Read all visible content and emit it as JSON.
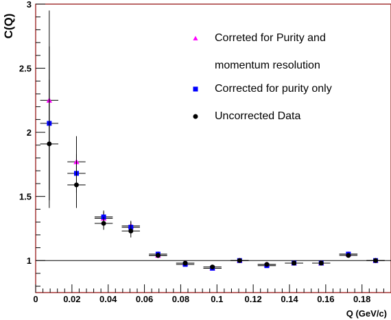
{
  "chart_data": {
    "type": "scatter",
    "xlabel": "Q (GeV/c)",
    "ylabel": "C(Q)",
    "xlim": [
      0,
      0.196
    ],
    "ylim": [
      0.75,
      3.0
    ],
    "x_ticks": [
      "0",
      "0.02",
      "0.04",
      "0.06",
      "0.08",
      "0.1",
      "0.12",
      "0.14",
      "0.16",
      "0.18"
    ],
    "x_tick_values": [
      0,
      0.02,
      0.04,
      0.06,
      0.08,
      0.1,
      0.12,
      0.14,
      0.16,
      0.18
    ],
    "y_ticks": [
      "1",
      "1.5",
      "2",
      "2.5",
      "3"
    ],
    "y_tick_values": [
      1,
      1.5,
      2,
      2.5,
      3
    ],
    "reference_line": 1.0,
    "legend_position": "top-right",
    "x_bin_halfwidth": 0.005,
    "series": [
      {
        "name": "Corrected for purity only",
        "marker": "square",
        "color": "#0000ff",
        "x": [
          0.0075,
          0.0225,
          0.0375,
          0.0525,
          0.0675,
          0.0825,
          0.0975,
          0.1125,
          0.1275,
          0.1425,
          0.1575,
          0.1725,
          0.1875
        ],
        "y": [
          2.07,
          1.68,
          1.34,
          1.26,
          1.05,
          0.97,
          0.94,
          1.0,
          0.96,
          0.98,
          0.98,
          1.05,
          1.0
        ],
        "err": [
          0.6,
          0.15,
          0.05,
          0.04,
          0.02,
          0.015,
          0.015,
          0.015,
          0.015,
          0.015,
          0.015,
          0.015,
          0.015
        ]
      },
      {
        "name": "Uncorrected Data",
        "marker": "circle",
        "color": "#000000",
        "x": [
          0.0075,
          0.0225,
          0.0375,
          0.0525,
          0.0675,
          0.0825,
          0.0975,
          0.1125,
          0.1275,
          0.1425,
          0.1575,
          0.1725,
          0.1875
        ],
        "y": [
          1.91,
          1.59,
          1.29,
          1.23,
          1.04,
          0.98,
          0.95,
          1.0,
          0.97,
          0.98,
          0.98,
          1.04,
          1.0
        ],
        "err": [
          0.5,
          0.18,
          0.05,
          0.05,
          0.02,
          0.015,
          0.015,
          0.015,
          0.015,
          0.015,
          0.015,
          0.015,
          0.015
        ]
      },
      {
        "name": "Correted for Purity and momentum resolution",
        "marker": "triangle",
        "color": "#ff00ff",
        "x": [
          0.0075,
          0.0225,
          0.0375,
          0.0525,
          0.0675,
          0.0825,
          0.0975,
          0.1125,
          0.1275,
          0.1425,
          0.1575,
          0.1725,
          0.1875
        ],
        "y": [
          2.25,
          1.77,
          1.33,
          1.27,
          1.04,
          0.98,
          0.94,
          1.0,
          0.97,
          0.98,
          0.98,
          1.05,
          1.0
        ],
        "err": [
          0.7,
          0.2,
          0.05,
          0.04,
          0.02,
          0.015,
          0.015,
          0.015,
          0.015,
          0.015,
          0.015,
          0.015,
          0.015
        ]
      }
    ],
    "legend": [
      {
        "marker": "triangle",
        "color": "#ff00ff",
        "lines": [
          "Correted for Purity and",
          "momentum resolution"
        ]
      },
      {
        "marker": "square",
        "color": "#0000ff",
        "lines": [
          "Corrected for purity only"
        ]
      },
      {
        "marker": "circle",
        "color": "#000000",
        "lines": [
          "Uncorrected Data"
        ]
      }
    ]
  }
}
